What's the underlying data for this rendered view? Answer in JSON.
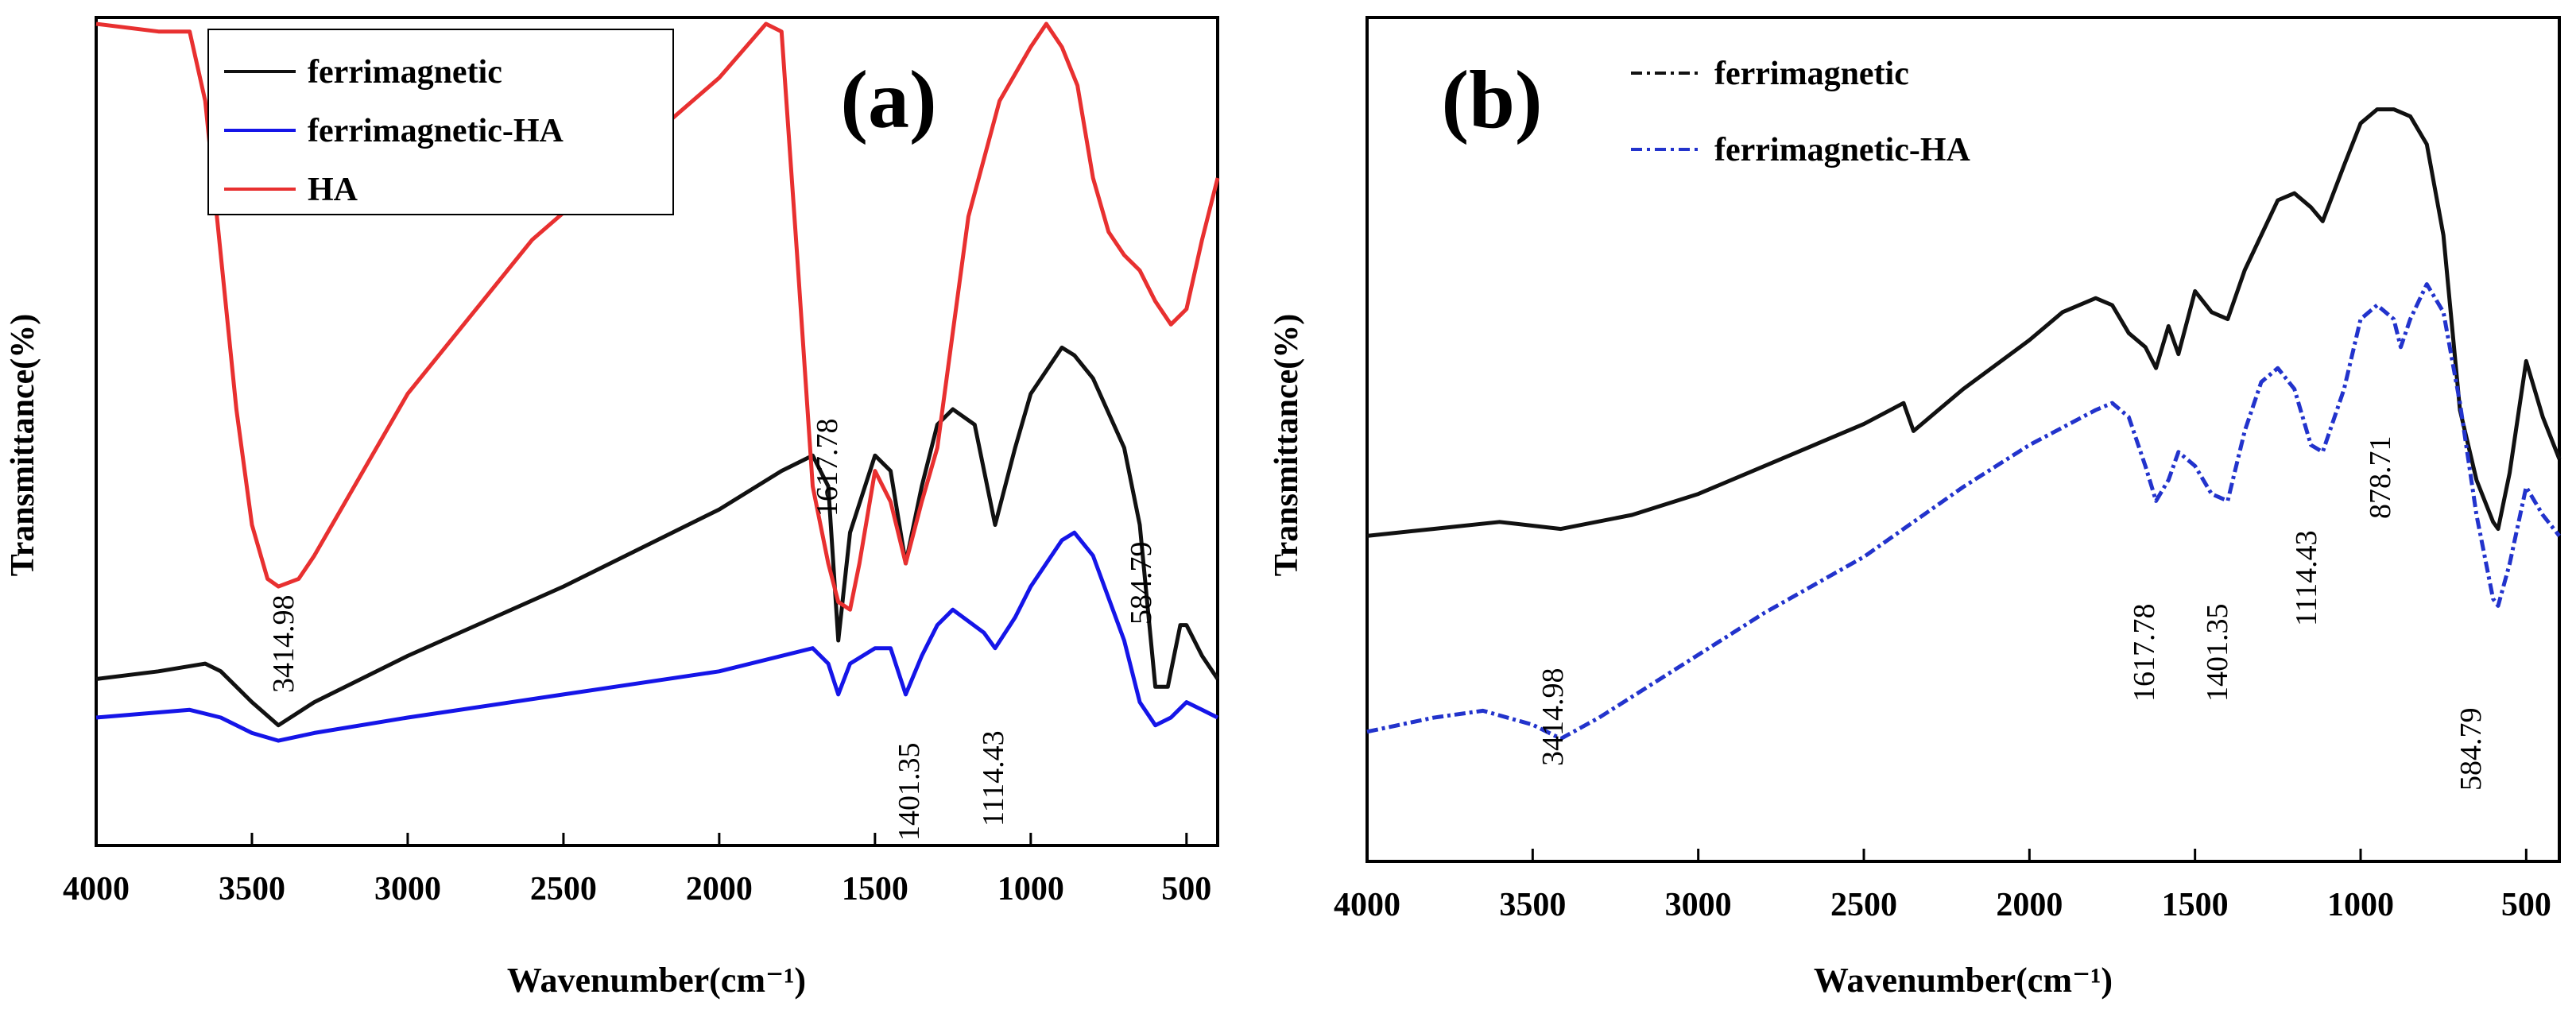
{
  "chart_data": [
    {
      "type": "line",
      "panel_label": "(a)",
      "xlabel": "Wavenumber(cm⁻¹)",
      "ylabel": "Transmittance(%)",
      "xlim": [
        4000,
        400
      ],
      "ylim": [
        0,
        100
      ],
      "x_ticks": [
        "4000",
        "3500",
        "3000",
        "2500",
        "2000",
        "1500",
        "1000",
        "500"
      ],
      "x_tick_values": [
        4000,
        3500,
        3000,
        2500,
        2000,
        1500,
        1000,
        500
      ],
      "legend_position": "top-left",
      "series": [
        {
          "name": "ferrimagnetic",
          "color": "#111111",
          "points": [
            [
              4000,
              15
            ],
            [
              3800,
              16
            ],
            [
              3650,
              17
            ],
            [
              3600,
              16
            ],
            [
              3500,
              12
            ],
            [
              3414.98,
              9
            ],
            [
              3300,
              12
            ],
            [
              3000,
              18
            ],
            [
              2500,
              27
            ],
            [
              2000,
              37
            ],
            [
              1800,
              42
            ],
            [
              1700,
              44
            ],
            [
              1650,
              40
            ],
            [
              1617.78,
              20
            ],
            [
              1580,
              34
            ],
            [
              1500,
              44
            ],
            [
              1450,
              42
            ],
            [
              1401.35,
              30
            ],
            [
              1350,
              40
            ],
            [
              1300,
              48
            ],
            [
              1250,
              50
            ],
            [
              1180,
              48
            ],
            [
              1114.43,
              35
            ],
            [
              1050,
              45
            ],
            [
              1000,
              52
            ],
            [
              950,
              55
            ],
            [
              900,
              58
            ],
            [
              860,
              57
            ],
            [
              800,
              54
            ],
            [
              700,
              45
            ],
            [
              650,
              35
            ],
            [
              600,
              14
            ],
            [
              560,
              14
            ],
            [
              520,
              22
            ],
            [
              500,
              22
            ],
            [
              450,
              18
            ],
            [
              400,
              15
            ]
          ]
        },
        {
          "name": "ferrimagnetic-HA",
          "color": "#1515e8",
          "points": [
            [
              4000,
              10
            ],
            [
              3700,
              11
            ],
            [
              3600,
              10
            ],
            [
              3500,
              8
            ],
            [
              3414.98,
              7
            ],
            [
              3300,
              8
            ],
            [
              3000,
              10
            ],
            [
              2500,
              13
            ],
            [
              2000,
              16
            ],
            [
              1700,
              19
            ],
            [
              1650,
              17
            ],
            [
              1617.78,
              13
            ],
            [
              1580,
              17
            ],
            [
              1500,
              19
            ],
            [
              1450,
              19
            ],
            [
              1401.35,
              13
            ],
            [
              1350,
              18
            ],
            [
              1300,
              22
            ],
            [
              1250,
              24
            ],
            [
              1150,
              21
            ],
            [
              1114.43,
              19
            ],
            [
              1050,
              23
            ],
            [
              1000,
              27
            ],
            [
              950,
              30
            ],
            [
              900,
              33
            ],
            [
              860,
              34
            ],
            [
              800,
              31
            ],
            [
              700,
              20
            ],
            [
              650,
              12
            ],
            [
              600,
              9
            ],
            [
              550,
              10
            ],
            [
              500,
              12
            ],
            [
              450,
              11
            ],
            [
              400,
              10
            ]
          ]
        },
        {
          "name": "HA",
          "color": "#e83030",
          "points": [
            [
              4000,
              100
            ],
            [
              3800,
              99
            ],
            [
              3700,
              99
            ],
            [
              3650,
              90
            ],
            [
              3600,
              70
            ],
            [
              3550,
              50
            ],
            [
              3500,
              35
            ],
            [
              3450,
              28
            ],
            [
              3414.98,
              27
            ],
            [
              3350,
              28
            ],
            [
              3300,
              31
            ],
            [
              3200,
              38
            ],
            [
              3000,
              52
            ],
            [
              2800,
              62
            ],
            [
              2600,
              72
            ],
            [
              2400,
              79
            ],
            [
              2200,
              86
            ],
            [
              2000,
              93
            ],
            [
              1850,
              100
            ],
            [
              1800,
              99
            ],
            [
              1750,
              70
            ],
            [
              1700,
              40
            ],
            [
              1650,
              30
            ],
            [
              1617.78,
              25
            ],
            [
              1580,
              24
            ],
            [
              1550,
              30
            ],
            [
              1500,
              42
            ],
            [
              1450,
              38
            ],
            [
              1401.35,
              30
            ],
            [
              1350,
              38
            ],
            [
              1300,
              45
            ],
            [
              1250,
              60
            ],
            [
              1200,
              75
            ],
            [
              1100,
              90
            ],
            [
              1000,
              97
            ],
            [
              950,
              100
            ],
            [
              900,
              97
            ],
            [
              850,
              92
            ],
            [
              800,
              80
            ],
            [
              750,
              73
            ],
            [
              700,
              70
            ],
            [
              650,
              68
            ],
            [
              600,
              64
            ],
            [
              550,
              61
            ],
            [
              500,
              63
            ],
            [
              450,
              72
            ],
            [
              400,
              80
            ]
          ]
        }
      ],
      "annotations": [
        "3414.98",
        "1617.78",
        "1401.35",
        "1114.43",
        "584.79"
      ]
    },
    {
      "type": "line",
      "panel_label": "(b)",
      "xlabel": "Wavenumber(cm⁻¹)",
      "ylabel": "Transmittance(%)",
      "xlim": [
        4000,
        400
      ],
      "ylim": [
        0,
        100
      ],
      "x_ticks": [
        "4000",
        "3500",
        "3000",
        "2500",
        "2000",
        "1500",
        "1000",
        "500"
      ],
      "x_tick_values": [
        4000,
        3500,
        3000,
        2500,
        2000,
        1500,
        1000,
        500
      ],
      "legend_position": "top-left",
      "series": [
        {
          "name": "ferrimagnetic",
          "color": "#111111",
          "points": [
            [
              4000,
              37
            ],
            [
              3800,
              38
            ],
            [
              3600,
              39
            ],
            [
              3414.98,
              38
            ],
            [
              3200,
              40
            ],
            [
              3000,
              43
            ],
            [
              2800,
              47
            ],
            [
              2500,
              53
            ],
            [
              2380,
              56
            ],
            [
              2350,
              52
            ],
            [
              2300,
              54
            ],
            [
              2200,
              58
            ],
            [
              2000,
              65
            ],
            [
              1900,
              69
            ],
            [
              1800,
              71
            ],
            [
              1750,
              70
            ],
            [
              1700,
              66
            ],
            [
              1650,
              64
            ],
            [
              1617.78,
              61
            ],
            [
              1580,
              67
            ],
            [
              1550,
              63
            ],
            [
              1500,
              72
            ],
            [
              1450,
              69
            ],
            [
              1401.35,
              68
            ],
            [
              1350,
              75
            ],
            [
              1300,
              80
            ],
            [
              1250,
              85
            ],
            [
              1200,
              86
            ],
            [
              1150,
              84
            ],
            [
              1114.43,
              82
            ],
            [
              1050,
              90
            ],
            [
              1000,
              96
            ],
            [
              950,
              98
            ],
            [
              900,
              98
            ],
            [
              850,
              97
            ],
            [
              800,
              93
            ],
            [
              750,
              80
            ],
            [
              700,
              55
            ],
            [
              650,
              45
            ],
            [
              600,
              39
            ],
            [
              584.79,
              38
            ],
            [
              550,
              46
            ],
            [
              500,
              62
            ],
            [
              450,
              54
            ],
            [
              400,
              48
            ]
          ]
        },
        {
          "name": "ferrimagnetic-HA",
          "color": "#2233cc",
          "points": [
            [
              4000,
              9
            ],
            [
              3800,
              11
            ],
            [
              3650,
              12
            ],
            [
              3500,
              10
            ],
            [
              3414.98,
              8
            ],
            [
              3300,
              11
            ],
            [
              3000,
              20
            ],
            [
              2800,
              26
            ],
            [
              2500,
              34
            ],
            [
              2200,
              44
            ],
            [
              2000,
              50
            ],
            [
              1800,
              55
            ],
            [
              1750,
              56
            ],
            [
              1700,
              54
            ],
            [
              1650,
              47
            ],
            [
              1617.78,
              42
            ],
            [
              1580,
              45
            ],
            [
              1550,
              49
            ],
            [
              1500,
              47
            ],
            [
              1450,
              43
            ],
            [
              1401.35,
              42
            ],
            [
              1350,
              52
            ],
            [
              1300,
              59
            ],
            [
              1250,
              61
            ],
            [
              1200,
              58
            ],
            [
              1150,
              50
            ],
            [
              1114.43,
              49
            ],
            [
              1050,
              58
            ],
            [
              1000,
              68
            ],
            [
              950,
              70
            ],
            [
              900,
              68
            ],
            [
              878.71,
              64
            ],
            [
              850,
              68
            ],
            [
              800,
              73
            ],
            [
              750,
              69
            ],
            [
              700,
              56
            ],
            [
              650,
              40
            ],
            [
              600,
              28
            ],
            [
              584.79,
              27
            ],
            [
              550,
              33
            ],
            [
              500,
              44
            ],
            [
              450,
              40
            ],
            [
              400,
              37
            ]
          ]
        }
      ],
      "annotations": [
        "3414.98",
        "1617.78",
        "1401.35",
        "1114.43",
        "878.71",
        "584.79"
      ]
    }
  ]
}
